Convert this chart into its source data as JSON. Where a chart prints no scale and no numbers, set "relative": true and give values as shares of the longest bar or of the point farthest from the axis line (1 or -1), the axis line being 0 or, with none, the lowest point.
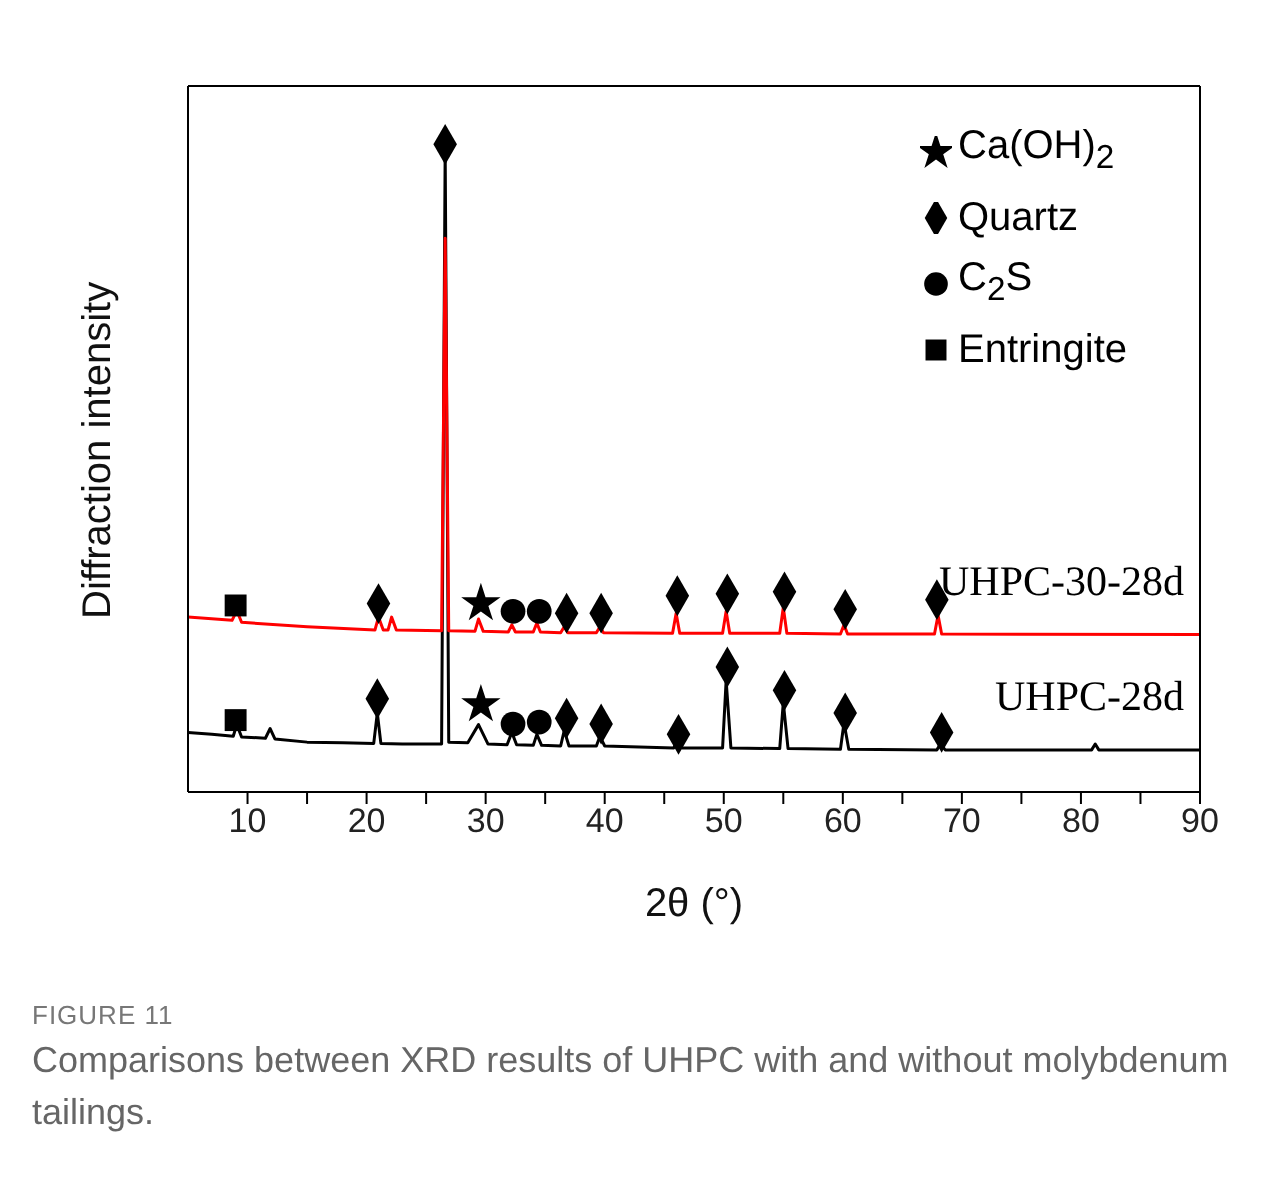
{
  "chart_data": {
    "type": "line",
    "relative": true,
    "xlabel": "2θ (°)",
    "ylabel": "Diffraction intensity",
    "xlim": [
      5,
      90
    ],
    "xticks": [
      10,
      {
        "value": 15,
        "label": null
      },
      20,
      {
        "value": 25,
        "label": null
      },
      30,
      {
        "value": 35,
        "label": null
      },
      40,
      {
        "value": 45,
        "label": null
      },
      50,
      {
        "value": 55,
        "label": null
      },
      60,
      {
        "value": 65,
        "label": null
      },
      70,
      {
        "value": 75,
        "label": null
      },
      80,
      {
        "value": 85,
        "label": null
      },
      90
    ],
    "grid": false,
    "legend": "top right",
    "series": [
      {
        "name": "UHPC-30-28d",
        "type": "line",
        "color": "#ff0000",
        "x": [
          5,
          8.7,
          9.1,
          9.5,
          15,
          20.7,
          21,
          21.4,
          21.8,
          22.1,
          22.5,
          26.3,
          26.6,
          26.9,
          29.1,
          29.4,
          29.8,
          31.9,
          32.2,
          32.5,
          34,
          34.3,
          34.6,
          36.3,
          36.6,
          36.9,
          39.3,
          39.6,
          39.9,
          45.7,
          46,
          46.3,
          49.9,
          50.2,
          50.5,
          54.7,
          55,
          55.3,
          59.8,
          60.1,
          60.4,
          67.7,
          68,
          68.3,
          90
        ],
        "values": [
          0.27,
          0.265,
          0.28,
          0.262,
          0.255,
          0.25,
          0.27,
          0.25,
          0.25,
          0.27,
          0.25,
          0.249,
          0.855,
          0.249,
          0.248,
          0.267,
          0.248,
          0.247,
          0.258,
          0.247,
          0.247,
          0.261,
          0.247,
          0.246,
          0.255,
          0.246,
          0.246,
          0.255,
          0.246,
          0.245,
          0.276,
          0.245,
          0.245,
          0.279,
          0.245,
          0.245,
          0.285,
          0.245,
          0.244,
          0.258,
          0.244,
          0.244,
          0.273,
          0.244,
          0.243
        ]
      },
      {
        "name": "UHPC-28d",
        "type": "line",
        "color": "#000000",
        "x": [
          5,
          7,
          8.8,
          9.1,
          9.5,
          11.5,
          11.9,
          12.3,
          15,
          18,
          20.6,
          20.9,
          21.2,
          23,
          26.3,
          26.6,
          26.9,
          28.5,
          29.4,
          30.2,
          31.8,
          32.2,
          32.6,
          34,
          34.3,
          34.7,
          36.3,
          36.6,
          37,
          39.3,
          39.6,
          40,
          45.8,
          46.1,
          46.5,
          49.9,
          50.2,
          50.6,
          54.7,
          55,
          55.4,
          59.8,
          60.1,
          60.5,
          67.9,
          68.2,
          68.6,
          80.9,
          81.2,
          81.5,
          90
        ],
        "values": [
          0.092,
          0.089,
          0.086,
          0.104,
          0.085,
          0.083,
          0.098,
          0.082,
          0.077,
          0.076,
          0.075,
          0.122,
          0.075,
          0.074,
          0.074,
          0.991,
          0.077,
          0.076,
          0.104,
          0.074,
          0.073,
          0.092,
          0.073,
          0.072,
          0.089,
          0.072,
          0.071,
          0.095,
          0.071,
          0.071,
          0.086,
          0.071,
          0.068,
          0.08,
          0.068,
          0.068,
          0.172,
          0.068,
          0.067,
          0.138,
          0.067,
          0.066,
          0.107,
          0.066,
          0.065,
          0.074,
          0.065,
          0.065,
          0.074,
          0.065,
          0.065
        ]
      },
      {
        "name": "Ca(OH)$_{2}$",
        "type": "scatter",
        "marker": "star",
        "color": "#000000",
        "x": [
          29.6,
          29.6
        ],
        "values": [
          0.135,
          0.291
        ]
      },
      {
        "name": "Quartz",
        "type": "scatter",
        "marker": "diamond",
        "color": "#000000",
        "x": [
          26.6,
          20.9,
          36.8,
          39.7,
          46.2,
          50.3,
          55.1,
          60.2,
          68.3,
          21,
          36.8,
          39.7,
          46.1,
          50.3,
          55.1,
          60.2,
          67.9
        ],
        "values": [
          1,
          0.144,
          0.114,
          0.105,
          0.089,
          0.193,
          0.157,
          0.122,
          0.092,
          0.291,
          0.276,
          0.276,
          0.303,
          0.306,
          0.309,
          0.282,
          0.297
        ]
      },
      {
        "name": "C$_{2}$S",
        "type": "scatter",
        "marker": "circle",
        "color": "#000000",
        "x": [
          32.3,
          34.5,
          32.3,
          34.5
        ],
        "values": [
          0.105,
          0.108,
          0.279,
          0.279
        ]
      },
      {
        "name": "Entringite",
        "type": "scatter",
        "marker": "square",
        "color": "#000000",
        "x": [
          9,
          9
        ],
        "values": [
          0.111,
          0.288
        ]
      }
    ],
    "annotations": [
      "FIGURE 11",
      "Comparisons between XRD results of UHPC with and without molybdenum tailings."
    ]
  }
}
